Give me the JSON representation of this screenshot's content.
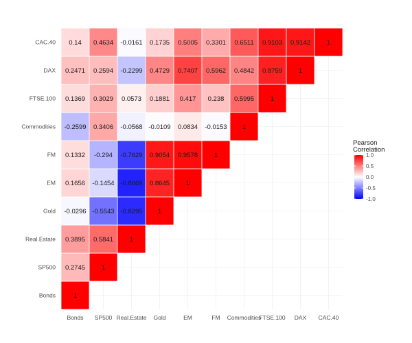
{
  "chart_data": {
    "type": "heatmap",
    "title": "",
    "variables": [
      "Bonds",
      "SP500",
      "Real.Estate",
      "Gold",
      "EM",
      "FM",
      "Commodities",
      "FTSE.100",
      "DAX",
      "CAC.40"
    ],
    "values": [
      [
        1,
        null,
        null,
        null,
        null,
        null,
        null,
        null,
        null,
        null
      ],
      [
        0.2745,
        1,
        null,
        null,
        null,
        null,
        null,
        null,
        null,
        null
      ],
      [
        0.3895,
        0.5841,
        1,
        null,
        null,
        null,
        null,
        null,
        null,
        null
      ],
      [
        -0.0296,
        -0.5543,
        -0.8295,
        1,
        null,
        null,
        null,
        null,
        null,
        null
      ],
      [
        0.1656,
        -0.1454,
        -0.8669,
        0.8645,
        1,
        null,
        null,
        null,
        null,
        null
      ],
      [
        0.1332,
        -0.294,
        -0.7629,
        0.9054,
        0.9578,
        1,
        null,
        null,
        null,
        null
      ],
      [
        -0.2599,
        0.3406,
        -0.0568,
        -0.0109,
        0.0834,
        -0.0153,
        1,
        null,
        null,
        null
      ],
      [
        0.1369,
        0.3029,
        0.0573,
        0.1881,
        0.417,
        0.238,
        0.5995,
        1,
        null,
        null
      ],
      [
        0.2471,
        0.2594,
        -0.2299,
        0.4729,
        0.7407,
        0.5962,
        0.4842,
        0.8759,
        1,
        null
      ],
      [
        0.14,
        0.4634,
        -0.0161,
        0.1735,
        0.5005,
        0.3301,
        0.6511,
        0.9103,
        0.9142,
        1
      ]
    ],
    "value_labels": [
      [
        "1",
        null,
        null,
        null,
        null,
        null,
        null,
        null,
        null,
        null
      ],
      [
        "0.2745",
        "1",
        null,
        null,
        null,
        null,
        null,
        null,
        null,
        null
      ],
      [
        "0.3895",
        "0.5841",
        "1",
        null,
        null,
        null,
        null,
        null,
        null,
        null
      ],
      [
        "-0.0296",
        "-0.5543",
        "-0.8295",
        "1",
        null,
        null,
        null,
        null,
        null,
        null
      ],
      [
        "0.1656",
        "-0.1454",
        "-0.8669",
        "0.8645",
        "1",
        null,
        null,
        null,
        null,
        null
      ],
      [
        "0.1332",
        "-0.294",
        "-0.7629",
        "0.9054",
        "0.9578",
        "1",
        null,
        null,
        null,
        null
      ],
      [
        "-0.2599",
        "0.3406",
        "-0.0568",
        "-0.0109",
        "0.0834",
        "-0.0153",
        "1",
        null,
        null,
        null
      ],
      [
        "0.1369",
        "0.3029",
        "0.0573",
        "0.1881",
        "0.417",
        "0.238",
        "0.5995",
        "1",
        null,
        null
      ],
      [
        "0.2471",
        "0.2594",
        "-0.2299",
        "0.4729",
        "0.7407",
        "0.5962",
        "0.4842",
        "0.8759",
        "1",
        null
      ],
      [
        "0.14",
        "0.4634",
        "-0.0161",
        "0.1735",
        "0.5005",
        "0.3301",
        "0.6511",
        "0.9103",
        "0.9142",
        "1"
      ]
    ],
    "xlabel": "",
    "ylabel": "",
    "color_scale": {
      "low": "#0000ff",
      "mid": "#ffffff",
      "high": "#ff0000",
      "limits": [
        -1,
        1
      ],
      "ticks": [
        1.0,
        0.5,
        0.0,
        -0.5,
        -1.0
      ],
      "tick_labels": [
        "1.0",
        "0.5",
        "0.0",
        "-0.5",
        "-1.0"
      ]
    },
    "legend": {
      "title_lines": [
        "Pearson",
        "Correlation"
      ],
      "position": "right"
    },
    "grid": true
  }
}
